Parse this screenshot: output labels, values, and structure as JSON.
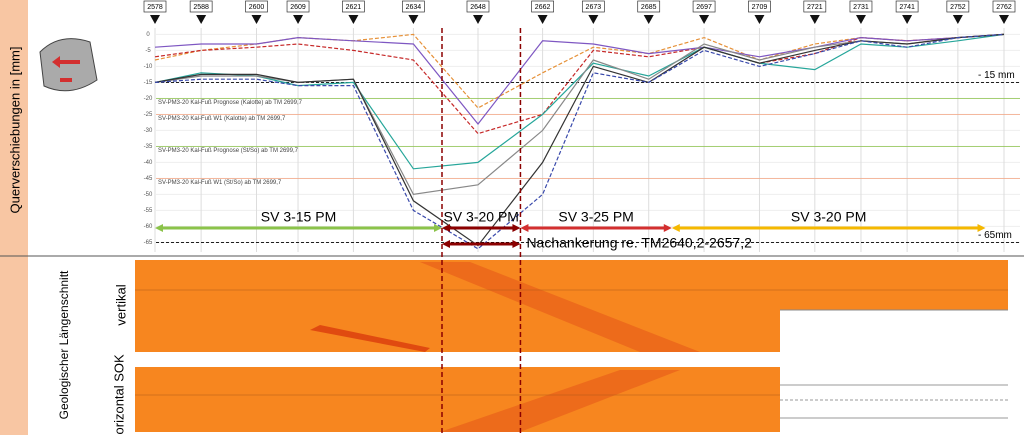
{
  "chart_data": {
    "type": "line",
    "y_axis_label": "Querverschiebungen in [mm]",
    "x": [
      2578,
      2588,
      2600,
      2609,
      2621,
      2634,
      2648,
      2662,
      2673,
      2685,
      2697,
      2709,
      2721,
      2731,
      2741,
      2752,
      2762
    ],
    "xlim": [
      2578,
      2762
    ],
    "ylim": [
      -68,
      2
    ],
    "yticks": [
      0,
      -5,
      -10,
      -15,
      -20,
      -25,
      -30,
      -35,
      -40,
      -45,
      -50,
      -55,
      -60,
      -65
    ],
    "grid": true,
    "series": [
      {
        "color": "#e69138",
        "dashed": true,
        "values": [
          -8,
          -5,
          -3,
          -1,
          -2,
          0,
          -23,
          -12,
          -4,
          -6,
          -1,
          -8,
          -3,
          -1,
          -2,
          -1,
          0
        ]
      },
      {
        "color": "#c62828",
        "dashed": true,
        "values": [
          -7,
          -5,
          -4,
          -3,
          -5,
          -8,
          -31,
          -25,
          -5,
          -7,
          -4,
          -9,
          -6,
          -1,
          -2,
          -1,
          0
        ]
      },
      {
        "color": "#7e57c2",
        "dashed": false,
        "values": [
          -4,
          -3,
          -3,
          -1,
          -2,
          -3,
          -28,
          -2,
          -3,
          -6,
          -4,
          -7,
          -4,
          -1,
          -2,
          -1,
          0
        ]
      },
      {
        "color": "#26a69a",
        "dashed": false,
        "values": [
          -15,
          -12,
          -13,
          -16,
          -15,
          -42,
          -40,
          -25,
          -9,
          -13,
          -4,
          -9,
          -11,
          -3,
          -4,
          -2,
          0
        ]
      },
      {
        "color": "#888888",
        "dashed": false,
        "values": [
          -15,
          -13,
          -13,
          -15,
          -14,
          -50,
          -47,
          -30,
          -8,
          -14,
          -3,
          -8,
          -4,
          -2,
          -3,
          -1,
          0
        ]
      },
      {
        "color": "#333333",
        "dashed": false,
        "values": [
          -15,
          -12.5,
          -12.5,
          -15,
          -14,
          -52,
          -66,
          -40,
          -10,
          -15,
          -4,
          -9,
          -5,
          -2,
          -3,
          -1,
          0
        ]
      },
      {
        "color": "#3949ab",
        "dashed": true,
        "values": [
          -15,
          -14,
          -14,
          -16,
          -16,
          -55,
          -67,
          -50,
          -12,
          -15,
          -5,
          -10,
          -6,
          -2,
          -4,
          -1,
          0
        ]
      }
    ],
    "reference_lines": [
      {
        "value": -15,
        "label": "- 15 mm",
        "color": "#000000"
      },
      {
        "value": -20,
        "label": "SV-PM3-20 Kal-Fuß Prognose (Kalotte) ab TM 2699,7",
        "color": "#8bc34a"
      },
      {
        "value": -25,
        "label": "SV-PM3-20 Kal-Fuß W1 (Kalotte) ab TM 2699,7",
        "color": "#f4a582"
      },
      {
        "value": -35,
        "label": "SV-PM3-20 Kal-Fuß Prognose (St/So) ab TM 2699,7",
        "color": "#8bc34a"
      },
      {
        "value": -45,
        "label": "SV-PM3-20 Kal-Fuß W1 (St/So) ab TM 2699,7",
        "color": "#f4a582"
      },
      {
        "value": -65,
        "label": "- 65mm",
        "color": "#000000"
      }
    ],
    "sections": [
      {
        "label": "SV 3-15 PM",
        "from": 2578,
        "to": 2640.2,
        "color": "#8bc34a"
      },
      {
        "label": "SV 3-20 PM",
        "from": 2640.2,
        "to": 2657.2,
        "color": "#8b0000"
      },
      {
        "label": "SV 3-25 PM",
        "from": 2657.2,
        "to": 2690,
        "color": "#d32f2f"
      },
      {
        "label": "SV 3-20 PM",
        "from": 2690,
        "to": 2758,
        "color": "#f5b800"
      }
    ],
    "reinforcement": {
      "label": "Nachankerung re. TM2640,2-2657,2",
      "from": 2640.2,
      "to": 2657.2,
      "color": "#8b0000"
    }
  },
  "geology": {
    "title": "Geologischer Längenschnitt",
    "vertical": "vertikal",
    "horizontal": "horizontal SOK"
  }
}
